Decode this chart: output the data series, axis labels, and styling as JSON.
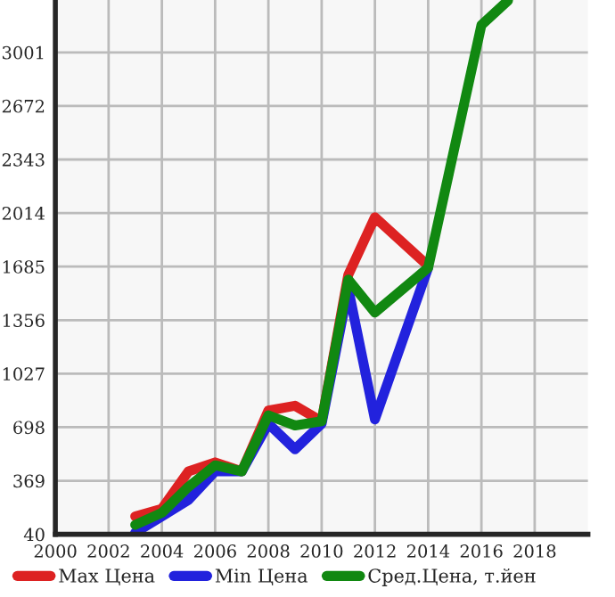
{
  "chart_data": {
    "type": "line",
    "xlim": [
      2000,
      2020
    ],
    "xticks": [
      2000,
      2002,
      2004,
      2006,
      2008,
      2010,
      2012,
      2014,
      2016,
      2018
    ],
    "ylim": [
      40,
      3323
    ],
    "yticks": [
      40,
      369,
      698,
      1027,
      1356,
      1685,
      2014,
      2343,
      2672,
      3001
    ],
    "grid": true,
    "legend": "bottom",
    "marker": "none",
    "line_style": "solid",
    "series": [
      {
        "name": "Max Цена",
        "color": "#dd2222",
        "x": [
          2003,
          2004,
          2005,
          2006,
          2007,
          2008,
          2009,
          2010,
          2011,
          2012,
          2014
        ],
        "values": [
          150,
          197,
          427,
          482,
          427,
          800,
          830,
          735,
          1634,
          1988,
          1689
        ]
      },
      {
        "name": "Min Цена",
        "color": "#2222dd",
        "x": [
          2003,
          2004,
          2005,
          2006,
          2007,
          2008,
          2009,
          2010,
          2011,
          2012,
          2014
        ],
        "values": [
          51,
          150,
          252,
          427,
          427,
          720,
          563,
          720,
          1550,
          746,
          1678
        ]
      },
      {
        "name": "Сред.Цена, т.йен",
        "color": "#118811",
        "x": [
          2003,
          2004,
          2005,
          2006,
          2007,
          2008,
          2009,
          2010,
          2011,
          2012,
          2014,
          2016,
          2017
        ],
        "values": [
          98,
          172,
          332,
          464,
          427,
          771,
          709,
          735,
          1605,
          1403,
          1678,
          3169,
          3320
        ]
      }
    ]
  }
}
